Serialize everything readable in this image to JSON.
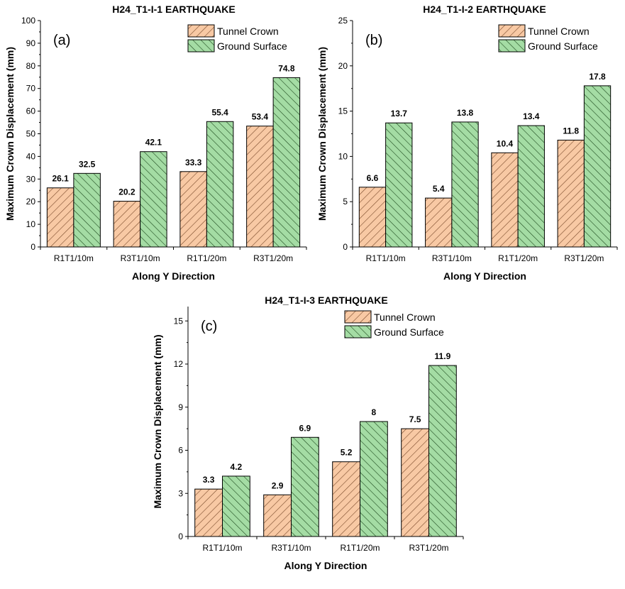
{
  "chart_data": [
    {
      "type": "bar",
      "panel_tag": "(a)",
      "title": "H24_T1-I-1 EARTHQUAKE",
      "xlabel": "Along Y Direction",
      "ylabel": "Maximum Crown Displacement (mm)",
      "ylim": [
        0,
        100
      ],
      "yticks": [
        0,
        10,
        20,
        30,
        40,
        50,
        60,
        70,
        80,
        90,
        100
      ],
      "legend_position": "top-right",
      "categories": [
        "R1T1/10m",
        "R3T1/10m",
        "R1T1/20m",
        "R3T1/20m"
      ],
      "series": [
        {
          "name": "Tunnel Crown",
          "values": [
            26.1,
            20.2,
            33.3,
            53.4
          ],
          "labels": [
            "26.1",
            "20.2",
            "33.3",
            "53.4"
          ]
        },
        {
          "name": "Ground Surface",
          "values": [
            32.5,
            42.1,
            55.4,
            74.8
          ],
          "labels": [
            "32.5",
            "42.1",
            "55.4",
            "74.8"
          ]
        }
      ]
    },
    {
      "type": "bar",
      "panel_tag": "(b)",
      "title": "H24_T1-I-2 EARTHQUAKE",
      "xlabel": "Along Y Direction",
      "ylabel": "Maximum Crown Displacement (mm)",
      "ylim": [
        0,
        25
      ],
      "yticks": [
        0,
        5,
        10,
        15,
        20,
        25
      ],
      "legend_position": "top-right",
      "categories": [
        "R1T1/10m",
        "R3T1/10m",
        "R1T1/20m",
        "R3T1/20m"
      ],
      "series": [
        {
          "name": "Tunnel Crown",
          "values": [
            6.6,
            5.4,
            10.4,
            11.8
          ],
          "labels": [
            "6.6",
            "5.4",
            "10.4",
            "11.8"
          ]
        },
        {
          "name": "Ground Surface",
          "values": [
            13.7,
            13.8,
            13.4,
            17.8
          ],
          "labels": [
            "13.7",
            "13.8",
            "13.4",
            "17.8"
          ]
        }
      ]
    },
    {
      "type": "bar",
      "panel_tag": "(c)",
      "title": "H24_T1-I-3 EARTHQUAKE",
      "xlabel": "Along Y Direction",
      "ylabel": "Maximum Crown Displacement (mm)",
      "ylim": [
        0,
        16
      ],
      "yticks": [
        0,
        3,
        6,
        9,
        12,
        15
      ],
      "legend_position": "top-right",
      "categories": [
        "R1T1/10m",
        "R3T1/10m",
        "R1T1/20m",
        "R3T1/20m"
      ],
      "series": [
        {
          "name": "Tunnel Crown",
          "values": [
            3.3,
            2.9,
            5.2,
            7.5
          ],
          "labels": [
            "3.3",
            "2.9",
            "5.2",
            "7.5"
          ]
        },
        {
          "name": "Ground Surface",
          "values": [
            4.2,
            6.9,
            8,
            11.9
          ],
          "labels": [
            "4.2",
            "6.9",
            "8",
            "11.9"
          ]
        }
      ]
    }
  ],
  "colors": {
    "tunnel_crown_fill": "#f8c9a4",
    "tunnel_crown_hatch": "#7a4a2a",
    "ground_surface_fill": "#a4dca4",
    "ground_surface_hatch": "#1e4a1e",
    "axis": "#000000"
  }
}
